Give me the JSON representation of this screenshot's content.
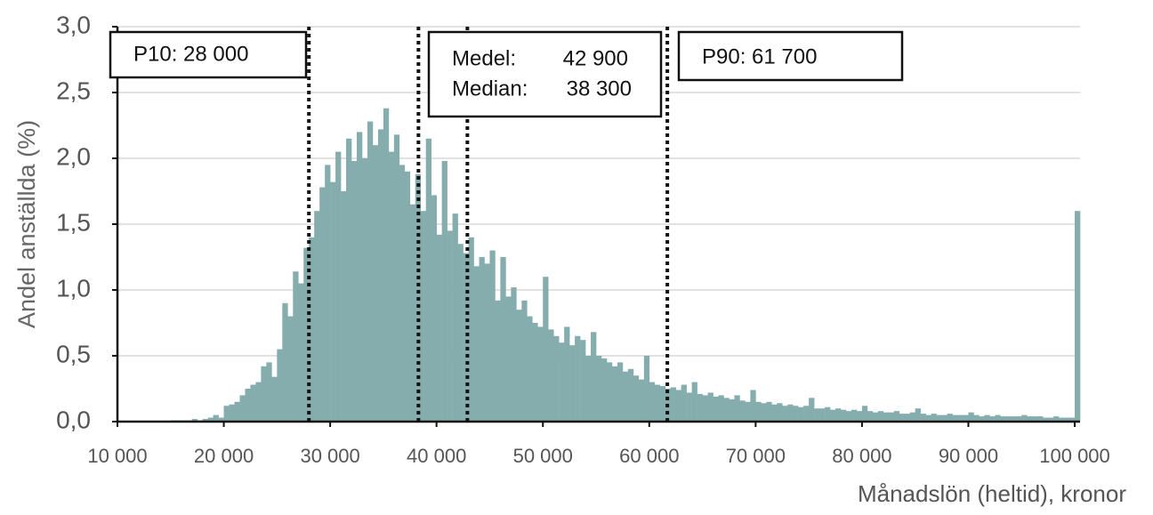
{
  "chart_data": {
    "type": "histogram",
    "y_label": "Andel anställda (%)",
    "x_label": "Månadslön (heltid), kronor",
    "color": "#86adad",
    "bins": [
      10000,
      10500,
      11000,
      11500,
      12000,
      12500,
      13000,
      13500,
      14000,
      14500,
      15000,
      15500,
      16000,
      16500,
      17000,
      17500,
      18000,
      18500,
      19000,
      19500,
      20000,
      20500,
      21000,
      21500,
      22000,
      22500,
      23000,
      23500,
      24000,
      24500,
      25000,
      25500,
      26000,
      26500,
      27000,
      27500,
      28000,
      28500,
      29000,
      29500,
      30000,
      30500,
      31000,
      31500,
      32000,
      32500,
      33000,
      33500,
      34000,
      34500,
      35000,
      35500,
      36000,
      36500,
      37000,
      37500,
      38000,
      38500,
      39000,
      39500,
      40000,
      40500,
      41000,
      41500,
      42000,
      42500,
      43000,
      43500,
      44000,
      44500,
      45000,
      45500,
      46000,
      46500,
      47000,
      47500,
      48000,
      48500,
      49000,
      49500,
      50000,
      50500,
      51000,
      51500,
      52000,
      52500,
      53000,
      53500,
      54000,
      54500,
      55000,
      55500,
      56000,
      56500,
      57000,
      57500,
      58000,
      58500,
      59000,
      59500,
      60000,
      60500,
      61000,
      61500,
      62000,
      62500,
      63000,
      63500,
      64000,
      64500,
      65000,
      65500,
      66000,
      66500,
      67000,
      67500,
      68000,
      68500,
      69000,
      69500,
      70000,
      70500,
      71000,
      71500,
      72000,
      72500,
      73000,
      73500,
      74000,
      74500,
      75000,
      75500,
      76000,
      76500,
      77000,
      77500,
      78000,
      78500,
      79000,
      79500,
      80000,
      80500,
      81000,
      81500,
      82000,
      82500,
      83000,
      83500,
      84000,
      84500,
      85000,
      85500,
      86000,
      86500,
      87000,
      87500,
      88000,
      88500,
      89000,
      89500,
      90000,
      90500,
      91000,
      91500,
      92000,
      92500,
      93000,
      93500,
      94000,
      94500,
      95000,
      95500,
      96000,
      96500,
      97000,
      97500,
      98000,
      98500,
      99000,
      99500,
      100000,
      100500
    ],
    "values": [
      0,
      0,
      0,
      0,
      0,
      0,
      0,
      0,
      0,
      0,
      0.01,
      0.01,
      0.01,
      0.01,
      0.02,
      0.01,
      0.02,
      0.03,
      0.05,
      0.03,
      0.12,
      0.13,
      0.15,
      0.2,
      0.25,
      0.28,
      0.3,
      0.42,
      0.45,
      0.34,
      0.55,
      0.9,
      0.8,
      1.14,
      1.05,
      1.32,
      1.4,
      1.6,
      1.78,
      1.95,
      1.82,
      2.05,
      1.75,
      2.15,
      1.98,
      2.2,
      2.0,
      2.28,
      2.1,
      2.22,
      2.38,
      2.05,
      2.18,
      1.95,
      1.9,
      1.65,
      1.88,
      1.6,
      2.15,
      1.72,
      1.42,
      1.98,
      1.45,
      1.58,
      1.35,
      1.28,
      1.4,
      1.18,
      1.25,
      1.2,
      1.3,
      0.92,
      1.25,
      0.95,
      1.02,
      0.85,
      0.92,
      0.8,
      0.75,
      0.72,
      1.1,
      0.7,
      0.65,
      0.6,
      0.72,
      0.58,
      0.65,
      0.62,
      0.5,
      0.68,
      0.5,
      0.48,
      0.45,
      0.42,
      0.45,
      0.38,
      0.4,
      0.35,
      0.32,
      0.5,
      0.3,
      0.28,
      0.27,
      0.25,
      0.26,
      0.24,
      0.28,
      0.22,
      0.3,
      0.21,
      0.2,
      0.22,
      0.19,
      0.2,
      0.18,
      0.17,
      0.2,
      0.16,
      0.15,
      0.24,
      0.15,
      0.14,
      0.15,
      0.13,
      0.14,
      0.12,
      0.13,
      0.12,
      0.11,
      0.12,
      0.18,
      0.1,
      0.1,
      0.11,
      0.09,
      0.1,
      0.09,
      0.08,
      0.09,
      0.08,
      0.12,
      0.08,
      0.07,
      0.08,
      0.07,
      0.07,
      0.08,
      0.06,
      0.06,
      0.07,
      0.1,
      0.06,
      0.05,
      0.06,
      0.05,
      0.05,
      0.06,
      0.05,
      0.05,
      0.05,
      0.07,
      0.05,
      0.04,
      0.05,
      0.04,
      0.05,
      0.04,
      0.04,
      0.04,
      0.04,
      0.05,
      0.04,
      0.04,
      0.04,
      0.03,
      0.03,
      0.04,
      0.03,
      0.03,
      0.03,
      1.6
    ],
    "xlim": [
      10000,
      100500
    ],
    "ylim": [
      0,
      3
    ],
    "xticks": [
      {
        "value": 10000,
        "label": "10 000"
      },
      {
        "value": 20000,
        "label": "20 000"
      },
      {
        "value": 30000,
        "label": "30 000"
      },
      {
        "value": 40000,
        "label": "40 000"
      },
      {
        "value": 50000,
        "label": "50 000"
      },
      {
        "value": 60000,
        "label": "60 000"
      },
      {
        "value": 70000,
        "label": "70 000"
      },
      {
        "value": 80000,
        "label": "80 000"
      },
      {
        "value": 90000,
        "label": "90 000"
      },
      {
        "value": 100000,
        "label": "100 000"
      }
    ],
    "yticks": [
      {
        "value": 0,
        "label": "0,0"
      },
      {
        "value": 0.5,
        "label": "0,5"
      },
      {
        "value": 1,
        "label": "1,0"
      },
      {
        "value": 1.5,
        "label": "1,5"
      },
      {
        "value": 2,
        "label": "2,0"
      },
      {
        "value": 2.5,
        "label": "2,5"
      },
      {
        "value": 3,
        "label": "3,0"
      }
    ],
    "grid": true,
    "reference_lines": [
      28000,
      38300,
      42900,
      61700
    ],
    "annotations": {
      "p10": "P10: 28 000",
      "medel_label": "Medel:",
      "medel_value": "42 900",
      "median_label": "Median:",
      "median_value": "38 300",
      "p90": "P90: 61 700"
    }
  }
}
